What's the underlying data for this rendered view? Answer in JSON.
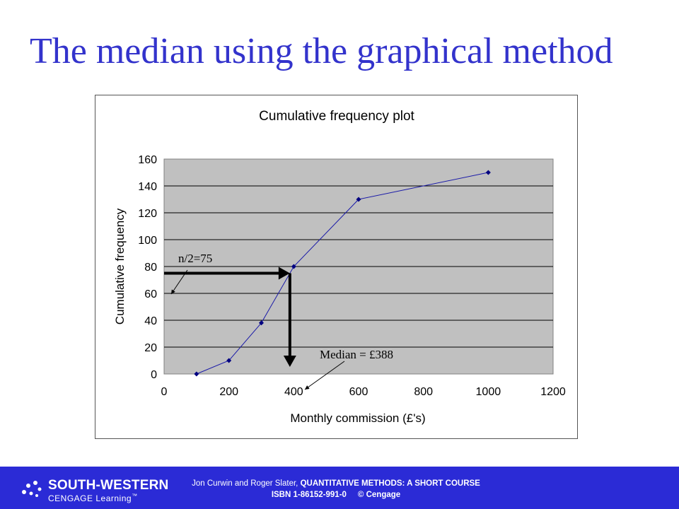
{
  "slide": {
    "title": "The median using the graphical method"
  },
  "chart_data": {
    "type": "line",
    "title": "Cumulative frequency plot",
    "xlabel": "Monthly commission (£'s)",
    "ylabel": "Cumulative frequency",
    "xlim": [
      0,
      1200
    ],
    "ylim": [
      0,
      160
    ],
    "x_ticks": [
      0,
      200,
      400,
      600,
      800,
      1000,
      1200
    ],
    "y_ticks": [
      0,
      20,
      40,
      60,
      80,
      100,
      120,
      140,
      160
    ],
    "grid": "horizontal",
    "series": [
      {
        "x": [
          100,
          200,
          300,
          400,
          600,
          1000
        ],
        "y": [
          0,
          10,
          38,
          80,
          130,
          150
        ]
      }
    ],
    "annotations": {
      "half_n_label": "n/2=75",
      "half_n_value": 75,
      "median_label": "Median = £388",
      "median_value": 388
    },
    "colors": {
      "plot_area": "#c0c0c0",
      "line": "#1a1aa8",
      "marker": "#000080",
      "arrow": "#000000"
    }
  },
  "footer": {
    "logo_line1": "SOUTH-WESTERN",
    "logo_line2": "CENGAGE Learning",
    "trademark": "™",
    "authors": "Jon Curwin and Roger Slater, ",
    "book": "QUANTITATIVE METHODS: A SHORT COURSE",
    "isbn": "ISBN 1-86152-991-0",
    "copyright": "© Cengage",
    "background": "#2b2bd6"
  }
}
